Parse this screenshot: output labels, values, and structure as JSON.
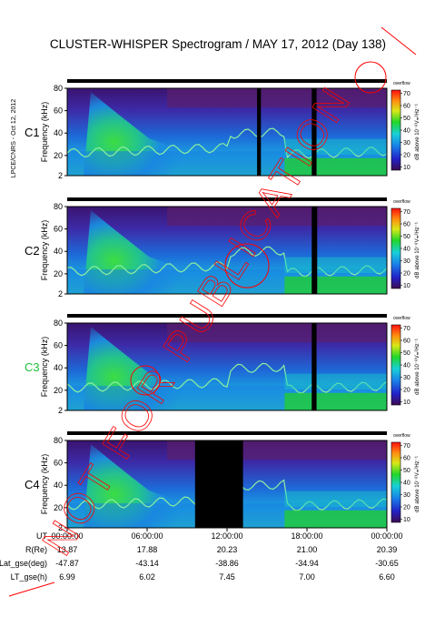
{
  "title": "CLUSTER-WHISPER Spectrogram / MAY 17, 2012 (Day 138)",
  "side_label": "LPCE/CNRS - Oct 12, 2012",
  "watermark_text": "NOT FOR PUBLICATION",
  "colors": {
    "background_plasma": "#5a1f6e",
    "wave_core": "#22d02a",
    "wave_halo": "#1a7fe0",
    "trace": "#8cf0a0",
    "gap": "#000000",
    "watermark": "#ff0000",
    "c3_label": "#1fbf3a"
  },
  "chart_data": [
    {
      "type": "heatmap",
      "spacecraft": "C1",
      "ylabel": "Frequency (kHz)",
      "ylim": [
        2,
        80
      ],
      "yticks": [
        "2",
        "20",
        "40",
        "60",
        "80"
      ],
      "colorbar": {
        "label": "dB above 10⁻⁸Vₘ²Hz⁻¹",
        "ticks": [
          "10",
          "20",
          "30",
          "40",
          "50",
          "60",
          "70"
        ],
        "top_tag": "overflow"
      }
    },
    {
      "type": "heatmap",
      "spacecraft": "C2",
      "ylabel": "Frequency (kHz)",
      "ylim": [
        2,
        80
      ],
      "yticks": [
        "2",
        "20",
        "40",
        "60",
        "80"
      ],
      "colorbar": {
        "label": "dB above 10⁻⁸Vₘ²Hz⁻¹",
        "ticks": [
          "10",
          "20",
          "30",
          "40",
          "50",
          "60",
          "70"
        ],
        "top_tag": "overflow"
      }
    },
    {
      "type": "heatmap",
      "spacecraft": "C3",
      "ylabel": "Frequency (kHz)",
      "ylim": [
        2,
        80
      ],
      "yticks": [
        "2",
        "20",
        "40",
        "60",
        "80"
      ],
      "colorbar": {
        "label": "dB above 10⁻⁸Vₘ²Hz⁻¹",
        "ticks": [
          "10",
          "20",
          "30",
          "40",
          "50",
          "60",
          "70"
        ],
        "top_tag": "overflow"
      }
    },
    {
      "type": "heatmap",
      "spacecraft": "C4",
      "ylabel": "Frequency (kHz)",
      "ylim": [
        2,
        80
      ],
      "yticks": [
        "2",
        "20",
        "40",
        "60",
        "80"
      ],
      "colorbar": {
        "label": "dB above 10⁻⁸Vₘ²Hz⁻¹",
        "ticks": [
          "10",
          "20",
          "30",
          "40",
          "50",
          "60",
          "70"
        ],
        "top_tag": "overflow"
      }
    }
  ],
  "xaxis": {
    "row_labels": [
      "UT",
      "R(Re)",
      "Lat_gse(deg)",
      "LT_gse(h)"
    ],
    "columns": [
      {
        "ut": "00:00:00",
        "r": "13.87",
        "lat": "-47.87",
        "lt": "6.99"
      },
      {
        "ut": "06:00:00",
        "r": "17.88",
        "lat": "-43.14",
        "lt": "6.02"
      },
      {
        "ut": "12:00:00",
        "r": "20.23",
        "lat": "-38.86",
        "lt": "7.45"
      },
      {
        "ut": "18:00:00",
        "r": "21.00",
        "lat": "-34.94",
        "lt": "7.00"
      },
      {
        "ut": "00:00:00",
        "r": "20.39",
        "lat": "-30.65",
        "lt": "6.60"
      }
    ]
  }
}
